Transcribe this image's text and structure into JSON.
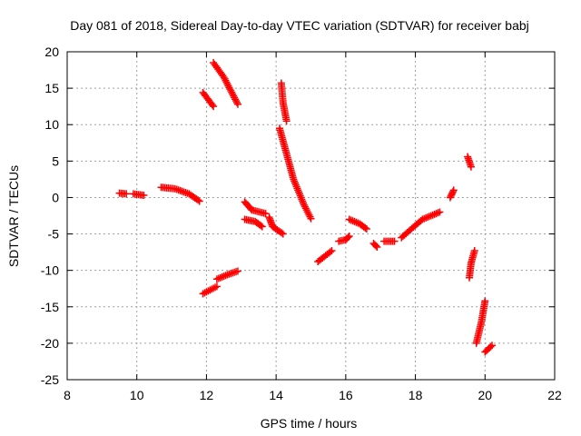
{
  "chart_data": {
    "type": "scatter",
    "title": "Day 081 of 2018, Sidereal Day-to-day VTEC variation (SDTVAR) for receiver babj",
    "xlabel": "GPS time / hours",
    "ylabel": "SDTVAR / TECUs",
    "xlim": [
      8,
      22
    ],
    "ylim": [
      -25,
      20
    ],
    "xticks": [
      "8",
      "10",
      "12",
      "14",
      "16",
      "18",
      "20",
      "22"
    ],
    "yticks": [
      "20",
      "15",
      "10",
      "5",
      "0",
      "-5",
      "-10",
      "-15",
      "-20",
      "-25"
    ],
    "xtick_values": [
      8,
      10,
      12,
      14,
      16,
      18,
      20,
      22
    ],
    "ytick_values": [
      20,
      15,
      10,
      5,
      0,
      -5,
      -10,
      -15,
      -20,
      -25
    ],
    "grid": true,
    "marker": "plus",
    "color": "#ff0000",
    "series": [
      {
        "values": [
          [
            9.5,
            0.6
          ],
          [
            9.7,
            0.5
          ]
        ]
      },
      {
        "values": [
          [
            9.9,
            0.5
          ],
          [
            10.2,
            0.3
          ]
        ]
      },
      {
        "values": [
          [
            10.7,
            1.4
          ],
          [
            11.1,
            1.2
          ],
          [
            11.5,
            0.5
          ],
          [
            11.8,
            -0.5
          ]
        ]
      },
      {
        "values": [
          [
            11.9,
            14.4
          ],
          [
            12.2,
            12.5
          ]
        ]
      },
      {
        "values": [
          [
            12.2,
            18.5
          ],
          [
            12.5,
            16.5
          ],
          [
            12.9,
            12.8
          ]
        ]
      },
      {
        "values": [
          [
            11.9,
            -13.2
          ],
          [
            12.3,
            -12.2
          ]
        ]
      },
      {
        "values": [
          [
            12.3,
            -11.2
          ],
          [
            12.6,
            -10.6
          ],
          [
            12.9,
            -10.1
          ]
        ]
      },
      {
        "values": [
          [
            13.1,
            -0.6
          ],
          [
            13.3,
            -1.7
          ],
          [
            13.7,
            -2.2
          ]
        ]
      },
      {
        "values": [
          [
            13.1,
            -3.0
          ],
          [
            13.4,
            -3.3
          ],
          [
            13.6,
            -4.0
          ]
        ]
      },
      {
        "values": [
          [
            13.8,
            -2.7
          ],
          [
            13.9,
            -4.0
          ],
          [
            14.2,
            -5.0
          ]
        ]
      },
      {
        "values": [
          [
            14.15,
            15.7
          ],
          [
            14.2,
            13.0
          ],
          [
            14.3,
            10.5
          ]
        ]
      },
      {
        "values": [
          [
            14.1,
            9.5
          ],
          [
            14.3,
            6.0
          ],
          [
            14.5,
            2.5
          ],
          [
            14.8,
            -1.0
          ],
          [
            15.0,
            -2.9
          ]
        ]
      },
      {
        "values": [
          [
            15.2,
            -8.8
          ],
          [
            15.6,
            -7.3
          ]
        ]
      },
      {
        "values": [
          [
            15.8,
            -6.0
          ],
          [
            16.0,
            -5.8
          ],
          [
            16.1,
            -5.3
          ]
        ]
      },
      {
        "values": [
          [
            16.1,
            -3.0
          ],
          [
            16.4,
            -3.6
          ],
          [
            16.6,
            -4.3
          ]
        ]
      },
      {
        "values": [
          [
            16.8,
            -6.3
          ],
          [
            16.9,
            -6.8
          ]
        ]
      },
      {
        "values": [
          [
            17.1,
            -6.0
          ],
          [
            17.4,
            -6.0
          ]
        ]
      },
      {
        "values": [
          [
            17.6,
            -5.5
          ],
          [
            18.2,
            -3.0
          ],
          [
            18.7,
            -2.0
          ]
        ]
      },
      {
        "values": [
          [
            19.0,
            0.0
          ],
          [
            19.1,
            1.0
          ]
        ]
      },
      {
        "values": [
          [
            19.5,
            5.6
          ],
          [
            19.6,
            4.2
          ]
        ]
      },
      {
        "values": [
          [
            19.55,
            -11.0
          ],
          [
            19.6,
            -9.0
          ],
          [
            19.7,
            -7.3
          ]
        ]
      },
      {
        "values": [
          [
            19.75,
            -20.0
          ],
          [
            19.9,
            -17.0
          ],
          [
            20.0,
            -14.2
          ]
        ]
      },
      {
        "values": [
          [
            20.0,
            -21.2
          ],
          [
            20.2,
            -20.3
          ]
        ]
      }
    ]
  }
}
